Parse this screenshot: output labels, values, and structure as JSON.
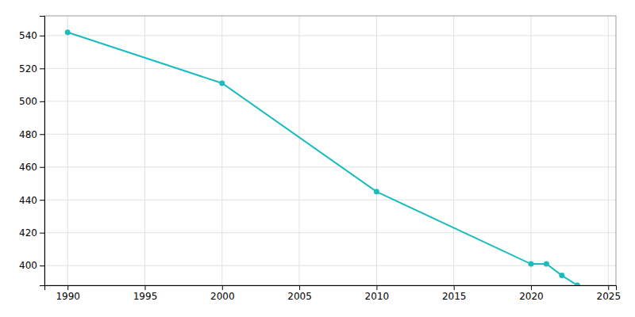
{
  "chart_data": {
    "type": "line",
    "x": [
      1990,
      2000,
      2010,
      2020,
      2021,
      2022,
      2023
    ],
    "values": [
      542,
      511,
      445,
      401,
      401,
      394,
      388
    ],
    "color": "#1abcbd",
    "marker": "circle",
    "xlim": [
      1988.5,
      2025.5
    ],
    "ylim": [
      388,
      552
    ],
    "xticks": [
      1990,
      1995,
      2000,
      2005,
      2010,
      2015,
      2020,
      2025
    ],
    "yticks": [
      400,
      420,
      440,
      460,
      480,
      500,
      520,
      540
    ],
    "grid": true
  }
}
